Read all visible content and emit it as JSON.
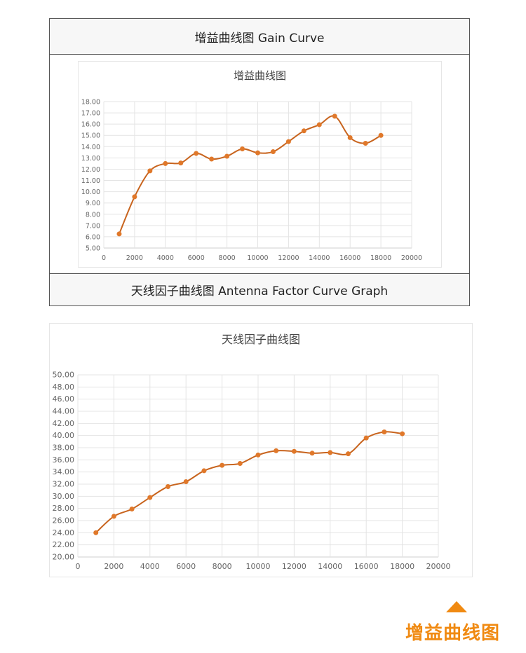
{
  "section1": {
    "header": "增益曲线图 Gain Curve",
    "footer": "天线因子曲线图  Antenna Factor Curve Graph"
  },
  "footer_badge": "增益曲线图",
  "colors": {
    "series": "#e0782a",
    "line": "#c8641e",
    "grid": "#e4e4e4",
    "accent": "#f08a12"
  },
  "chart_data": [
    {
      "type": "line",
      "title": "增益曲线图",
      "xlabel": "",
      "ylabel": "",
      "xlim": [
        0,
        20000
      ],
      "ylim": [
        5,
        18
      ],
      "xticks": [
        0,
        2000,
        4000,
        6000,
        8000,
        10000,
        12000,
        14000,
        16000,
        18000,
        20000
      ],
      "yticks": [
        "5.00",
        "6.00",
        "7.00",
        "8.00",
        "9.00",
        "10.00",
        "11.00",
        "12.00",
        "13.00",
        "14.00",
        "15.00",
        "16.00",
        "17.00",
        "18.00"
      ],
      "grid": true,
      "x": [
        1000,
        2000,
        3000,
        4000,
        5000,
        6000,
        7000,
        8000,
        9000,
        10000,
        11000,
        12000,
        13000,
        14000,
        15000,
        16000,
        17000,
        18000
      ],
      "values": [
        6.25,
        9.55,
        11.85,
        12.5,
        12.55,
        13.4,
        12.9,
        13.15,
        13.8,
        13.45,
        13.55,
        14.45,
        15.4,
        15.95,
        16.7,
        14.8,
        14.3,
        15.0
      ]
    },
    {
      "type": "line",
      "title": "天线因子曲线图",
      "xlabel": "",
      "ylabel": "",
      "xlim": [
        0,
        20000
      ],
      "ylim": [
        20,
        50
      ],
      "xticks": [
        0,
        2000,
        4000,
        6000,
        8000,
        10000,
        12000,
        14000,
        16000,
        18000,
        20000
      ],
      "yticks": [
        "20.00",
        "22.00",
        "24.00",
        "26.00",
        "28.00",
        "30.00",
        "32.00",
        "34.00",
        "36.00",
        "38.00",
        "40.00",
        "42.00",
        "44.00",
        "46.00",
        "48.00",
        "50.00"
      ],
      "grid": true,
      "x": [
        1000,
        2000,
        3000,
        4000,
        5000,
        6000,
        7000,
        8000,
        9000,
        10000,
        11000,
        12000,
        13000,
        14000,
        15000,
        16000,
        17000,
        18000
      ],
      "values": [
        24.0,
        26.7,
        27.9,
        29.8,
        31.6,
        32.4,
        34.2,
        35.1,
        35.4,
        36.8,
        37.5,
        37.4,
        37.1,
        37.2,
        37.0,
        39.6,
        40.6,
        40.3
      ]
    }
  ]
}
